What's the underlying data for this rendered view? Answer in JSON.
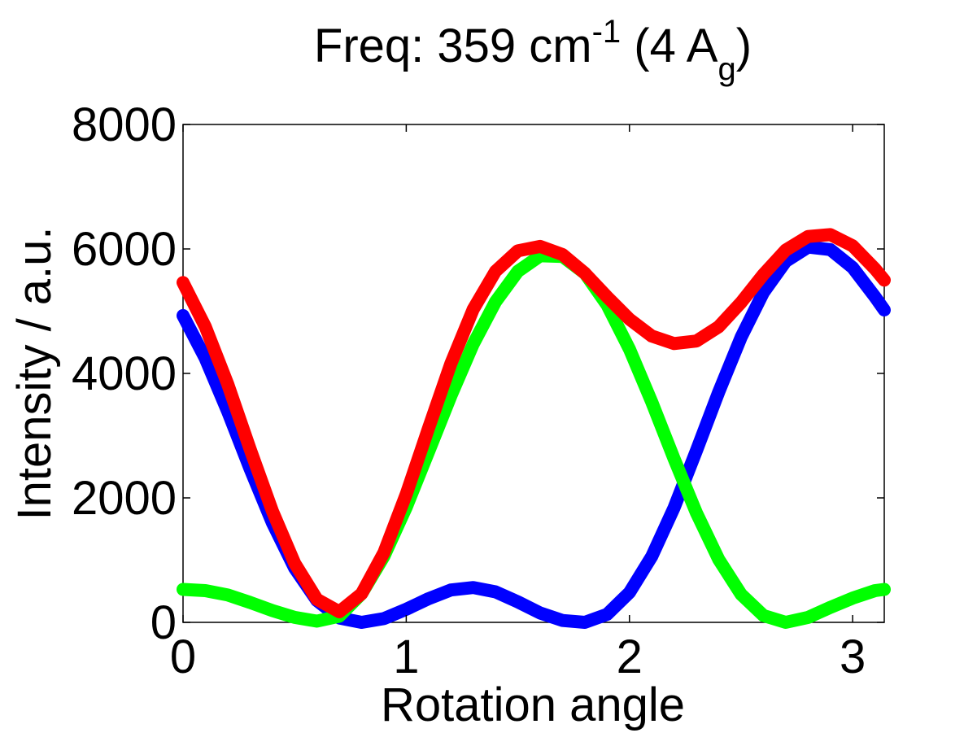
{
  "chart_data": {
    "type": "line",
    "title": {
      "prefix": "Freq: 359 cm",
      "superscript": "-1",
      "middle": " (4 A",
      "subscript": "g",
      "suffix": ")"
    },
    "xlabel": "Rotation angle",
    "ylabel": "Intensity / a.u.",
    "xlim": [
      0,
      3.1416
    ],
    "ylim": [
      0,
      8000
    ],
    "xticks": [
      0,
      1,
      2,
      3
    ],
    "xtick_labels": [
      "0",
      "1",
      "2",
      "3"
    ],
    "yticks": [
      0,
      2000,
      4000,
      6000,
      8000
    ],
    "ytick_labels": [
      "0",
      "2000",
      "4000",
      "6000",
      "8000"
    ],
    "grid": false,
    "series": [
      {
        "color": "#0000ff",
        "x": [
          0,
          0.1,
          0.2,
          0.3,
          0.4,
          0.5,
          0.6,
          0.7,
          0.8,
          0.9,
          1.0,
          1.1,
          1.2,
          1.3,
          1.4,
          1.5,
          1.6,
          1.7,
          1.8,
          1.9,
          2.0,
          2.1,
          2.2,
          2.3,
          2.4,
          2.5,
          2.6,
          2.7,
          2.8,
          2.9,
          3.0,
          3.1,
          3.1416
        ],
        "y": [
          4930,
          4240,
          3390,
          2470,
          1600,
          870,
          350,
          70,
          0,
          60,
          210,
          380,
          520,
          560,
          490,
          330,
          150,
          30,
          0,
          130,
          480,
          1060,
          1840,
          2760,
          3700,
          4580,
          5300,
          5800,
          6030,
          5990,
          5700,
          5230,
          5020
        ]
      },
      {
        "color": "#00ff00",
        "x": [
          0,
          0.1,
          0.2,
          0.3,
          0.4,
          0.5,
          0.6,
          0.7,
          0.8,
          0.9,
          1.0,
          1.1,
          1.2,
          1.3,
          1.4,
          1.5,
          1.6,
          1.7,
          1.8,
          1.9,
          2.0,
          2.1,
          2.2,
          2.3,
          2.4,
          2.5,
          2.6,
          2.7,
          2.8,
          2.9,
          3.0,
          3.1,
          3.1416
        ],
        "y": [
          530,
          510,
          440,
          320,
          190,
          80,
          20,
          100,
          460,
          1060,
          1850,
          2740,
          3640,
          4470,
          5150,
          5640,
          5890,
          5880,
          5610,
          5100,
          4390,
          3540,
          2630,
          1760,
          1010,
          450,
          110,
          0,
          80,
          240,
          390,
          510,
          530
        ]
      },
      {
        "color": "#ff0000",
        "x": [
          0,
          0.1,
          0.2,
          0.3,
          0.4,
          0.5,
          0.6,
          0.7,
          0.8,
          0.9,
          1.0,
          1.1,
          1.2,
          1.3,
          1.4,
          1.5,
          1.6,
          1.7,
          1.8,
          1.9,
          2.0,
          2.1,
          2.2,
          2.3,
          2.4,
          2.5,
          2.6,
          2.7,
          2.8,
          2.9,
          3.0,
          3.1,
          3.1416
        ],
        "y": [
          5460,
          4750,
          3830,
          2790,
          1790,
          950,
          370,
          170,
          460,
          1120,
          2060,
          3120,
          4160,
          5030,
          5640,
          5970,
          6040,
          5910,
          5610,
          5230,
          4870,
          4600,
          4480,
          4520,
          4750,
          5140,
          5590,
          5980,
          6200,
          6230,
          6050,
          5680,
          5500
        ]
      }
    ]
  }
}
